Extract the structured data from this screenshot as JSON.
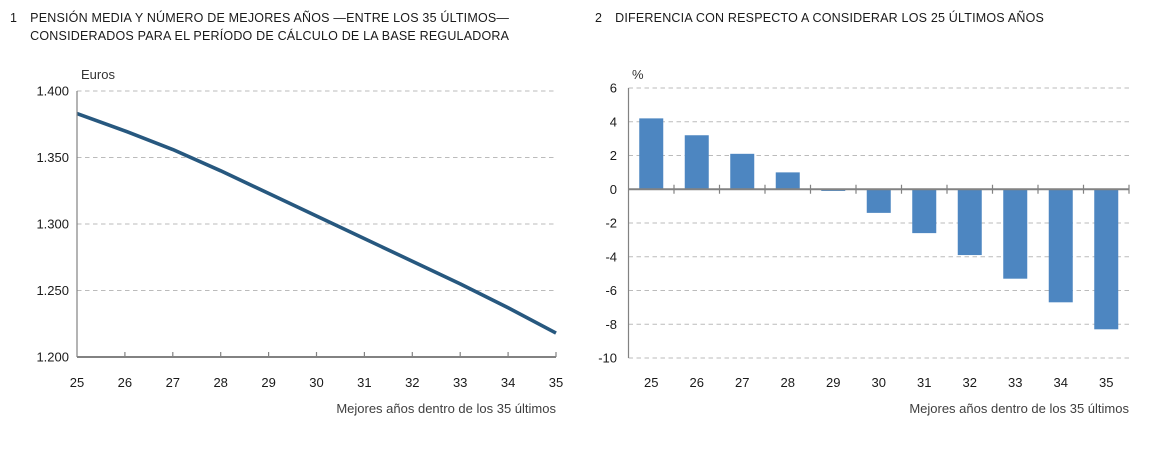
{
  "figure": {
    "background": "#ffffff"
  },
  "chart_data": [
    {
      "type": "line",
      "number": "1",
      "title": "PENSIÓN MEDIA Y NÚMERO DE MEJORES AÑOS —ENTRE LOS 35 ÚLTIMOS— CONSIDERADOS PARA EL PERÍODO DE CÁLCULO DE LA BASE REGULADORA",
      "unit": "Euros",
      "xlabel": "Mejores años dentro de los 35 últimos",
      "categories": [
        "25",
        "26",
        "27",
        "28",
        "29",
        "30",
        "31",
        "32",
        "33",
        "34",
        "35"
      ],
      "values": [
        1383,
        1370,
        1356,
        1340,
        1323,
        1306,
        1289,
        1272,
        1255,
        1237,
        1218
      ],
      "ylim": [
        1200,
        1400
      ],
      "axis_value": 1200,
      "yticks": [
        {
          "value": 1400,
          "label": "1.400"
        },
        {
          "value": 1350,
          "label": "1.350"
        },
        {
          "value": 1300,
          "label": "1.300"
        },
        {
          "value": 1250,
          "label": "1.250"
        },
        {
          "value": 1200,
          "label": "1.200"
        }
      ],
      "grid": "dashed-horizontal",
      "legend": "none",
      "color": "#27587F"
    },
    {
      "type": "bar",
      "number": "2",
      "title": "DIFERENCIA CON RESPECTO A CONSIDERAR LOS 25 ÚLTIMOS AÑOS",
      "unit": "%",
      "xlabel": "Mejores años dentro de los 35 últimos",
      "categories": [
        "25",
        "26",
        "27",
        "28",
        "29",
        "30",
        "31",
        "32",
        "33",
        "34",
        "35"
      ],
      "values": [
        4.2,
        3.2,
        2.1,
        1.0,
        -0.1,
        -1.4,
        -2.6,
        -3.9,
        -5.3,
        -6.7,
        -8.3
      ],
      "ylim": [
        -10,
        6
      ],
      "axis_value": 0,
      "yticks": [
        {
          "value": 6,
          "label": "6"
        },
        {
          "value": 4,
          "label": "4"
        },
        {
          "value": 2,
          "label": "2"
        },
        {
          "value": 0,
          "label": "0"
        },
        {
          "value": -2,
          "label": "-2"
        },
        {
          "value": -4,
          "label": "-4"
        },
        {
          "value": -6,
          "label": "-6"
        },
        {
          "value": -8,
          "label": "-8"
        },
        {
          "value": -10,
          "label": "-10"
        }
      ],
      "grid": "dashed-horizontal",
      "legend": "none",
      "color": "#4D86C1"
    }
  ],
  "colors": {
    "line_blue": "#27587F",
    "bar_blue": "#4D86C1",
    "grid_gray": "#BBBBBB",
    "axis_gray": "#828282",
    "title_text": "#1A1A1A",
    "tick_text": "#1A1A1A",
    "caption_text": "#3F3F3F"
  }
}
